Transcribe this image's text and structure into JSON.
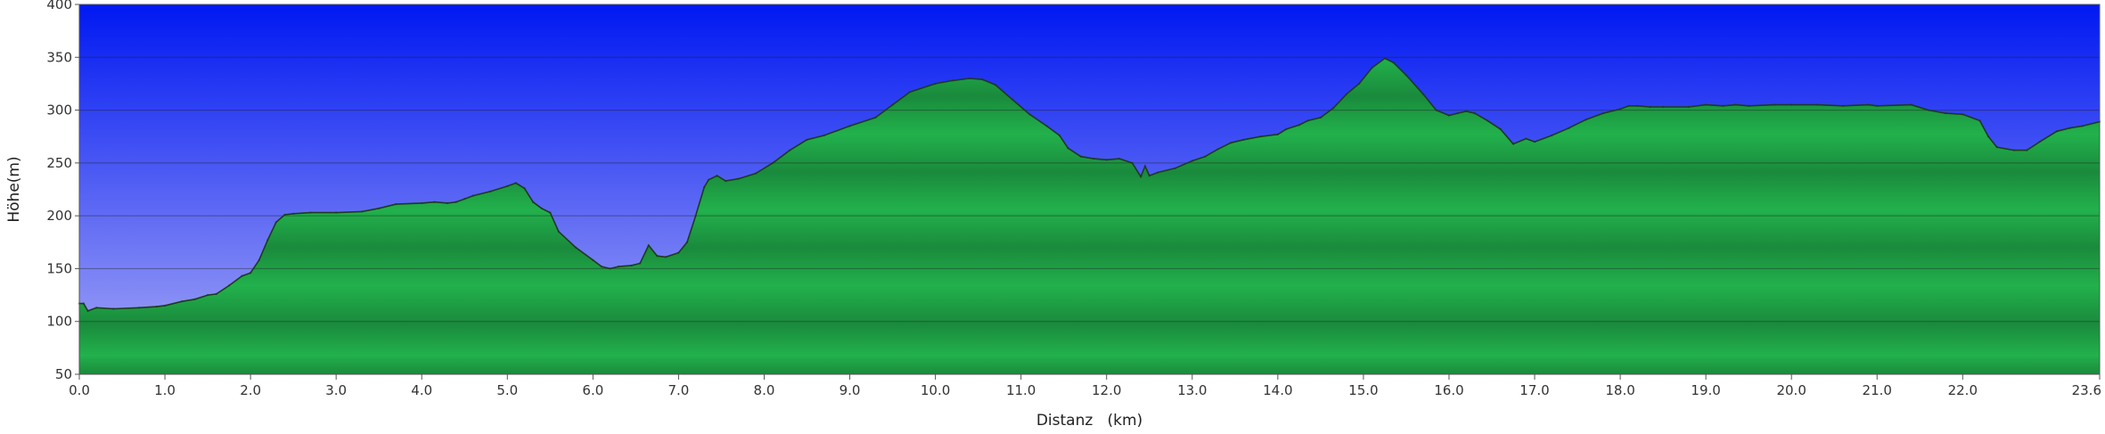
{
  "chart_data": {
    "type": "area",
    "xlabel": "Distanz   (km)",
    "ylabel": "Höhe(m)",
    "xlim": [
      0,
      23.6
    ],
    "ylim": [
      50,
      400
    ],
    "x_ticks": [
      0.0,
      1.0,
      2.0,
      3.0,
      4.0,
      5.0,
      6.0,
      7.0,
      8.0,
      9.0,
      10.0,
      11.0,
      12.0,
      13.0,
      14.0,
      15.0,
      16.0,
      17.0,
      18.0,
      19.0,
      20.0,
      21.0,
      22.0,
      23.6
    ],
    "x_tick_labels": [
      "0.0",
      "1.0",
      "2.0",
      "3.0",
      "4.0",
      "5.0",
      "6.0",
      "7.0",
      "8.0",
      "9.0",
      "10.0",
      "11.0",
      "12.0",
      "13.0",
      "14.0",
      "15.0",
      "16.0",
      "17.0",
      "18.0",
      "19.0",
      "20.0",
      "21.0",
      "22.0",
      "23.6"
    ],
    "y_ticks": [
      50,
      100,
      150,
      200,
      250,
      300,
      350,
      400
    ],
    "y_tick_labels": [
      "50",
      "100",
      "150",
      "200",
      "250",
      "300",
      "350",
      "400"
    ],
    "grid": "horizontal",
    "colors": {
      "sky_top": "#0018f2",
      "sky_bottom": "#a8aaf6",
      "fill_light": "#22b14c",
      "fill_dark": "#1a8a3c",
      "outline": "#1e3a1e",
      "gridline": "#222222"
    },
    "series": [
      {
        "x": [
          0.0,
          0.05,
          0.1,
          0.2,
          0.4,
          0.7,
          0.9,
          1.0,
          1.2,
          1.35,
          1.5,
          1.6,
          1.75,
          1.9,
          2.0,
          2.1,
          2.2,
          2.3,
          2.4,
          2.5,
          2.7,
          3.0,
          3.3,
          3.5,
          3.7,
          4.0,
          4.15,
          4.3,
          4.4,
          4.5,
          4.6,
          4.8,
          5.0,
          5.1,
          5.2,
          5.3,
          5.4,
          5.5,
          5.6,
          5.8,
          6.0,
          6.1,
          6.2,
          6.3,
          6.45,
          6.55,
          6.65,
          6.75,
          6.85,
          7.0,
          7.1,
          7.2,
          7.3,
          7.35,
          7.45,
          7.55,
          7.7,
          7.9,
          8.1,
          8.3,
          8.5,
          8.7,
          9.0,
          9.3,
          9.5,
          9.7,
          10.0,
          10.2,
          10.4,
          10.55,
          10.7,
          10.9,
          11.1,
          11.3,
          11.45,
          11.55,
          11.7,
          11.85,
          12.0,
          12.15,
          12.3,
          12.4,
          12.45,
          12.5,
          12.6,
          12.8,
          13.0,
          13.15,
          13.3,
          13.45,
          13.6,
          13.8,
          14.0,
          14.1,
          14.25,
          14.35,
          14.5,
          14.65,
          14.8,
          14.95,
          15.1,
          15.25,
          15.35,
          15.5,
          15.7,
          15.85,
          16.0,
          16.1,
          16.2,
          16.3,
          16.45,
          16.6,
          16.75,
          16.9,
          17.0,
          17.2,
          17.4,
          17.6,
          17.8,
          18.0,
          18.1,
          18.2,
          18.35,
          18.5,
          18.8,
          19.0,
          19.2,
          19.35,
          19.5,
          19.8,
          20.0,
          20.3,
          20.6,
          20.9,
          21.0,
          21.4,
          21.6,
          21.8,
          22.0,
          22.2,
          22.3,
          22.4,
          22.6,
          22.75,
          22.9,
          23.1,
          23.25,
          23.4,
          23.6
        ],
        "values": [
          117,
          117,
          110,
          113,
          112,
          113,
          114,
          115,
          119,
          121,
          125,
          126,
          134,
          143,
          146,
          158,
          177,
          194,
          201,
          202,
          203,
          203,
          204,
          207,
          211,
          212,
          213,
          212,
          213,
          216,
          219,
          223,
          228,
          231,
          226,
          213,
          207,
          203,
          185,
          170,
          158,
          152,
          150,
          152,
          153,
          155,
          172,
          162,
          161,
          165,
          175,
          200,
          227,
          234,
          238,
          233,
          235,
          240,
          250,
          262,
          272,
          276,
          285,
          293,
          305,
          317,
          325,
          328,
          330,
          329,
          324,
          310,
          296,
          285,
          276,
          264,
          256,
          254,
          253,
          254,
          250,
          237,
          247,
          238,
          241,
          245,
          252,
          256,
          263,
          269,
          272,
          275,
          277,
          282,
          286,
          290,
          293,
          302,
          315,
          325,
          340,
          349,
          345,
          333,
          315,
          300,
          295,
          297,
          299,
          297,
          290,
          282,
          268,
          273,
          270,
          276,
          283,
          291,
          297,
          301,
          304,
          304,
          303,
          303,
          303,
          305,
          304,
          305,
          304,
          305,
          305,
          305,
          304,
          305,
          304,
          305,
          300,
          297,
          296,
          290,
          275,
          265,
          262,
          262,
          270,
          280,
          283,
          285,
          289
        ]
      }
    ]
  }
}
